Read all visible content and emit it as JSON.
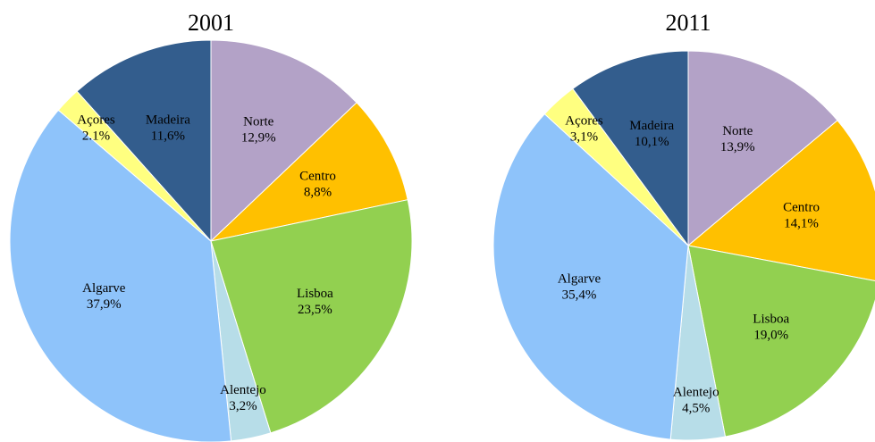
{
  "chart_data": [
    {
      "type": "pie",
      "title": "2001",
      "categories": [
        "Norte",
        "Centro",
        "Lisboa",
        "Alentejo",
        "Algarve",
        "Açores",
        "Madeira"
      ],
      "values": [
        12.9,
        8.8,
        23.5,
        3.2,
        37.9,
        2.1,
        11.6
      ],
      "value_labels": [
        "12,9%",
        "8,8%",
        "23,5%",
        "3,2%",
        "37,9%",
        "2.1%",
        "11,6%"
      ],
      "colors": [
        "#b3a2c7",
        "#ffc000",
        "#92d050",
        "#b7dde8",
        "#8ec3fa",
        "#ffff80",
        "#335d8d"
      ]
    },
    {
      "type": "pie",
      "title": "2011",
      "categories": [
        "Norte",
        "Centro",
        "Lisboa",
        "Alentejo",
        "Algarve",
        "Açores",
        "Madeira"
      ],
      "values": [
        13.9,
        14.1,
        19.0,
        4.5,
        35.4,
        3.1,
        10.1
      ],
      "value_labels": [
        "13,9%",
        "14,1%",
        "19,0%",
        "4,5%",
        "35,4%",
        "3,1%",
        "10,1%"
      ],
      "colors": [
        "#b3a2c7",
        "#ffc000",
        "#92d050",
        "#b7dde8",
        "#8ec3fa",
        "#ffff80",
        "#335d8d"
      ]
    }
  ]
}
